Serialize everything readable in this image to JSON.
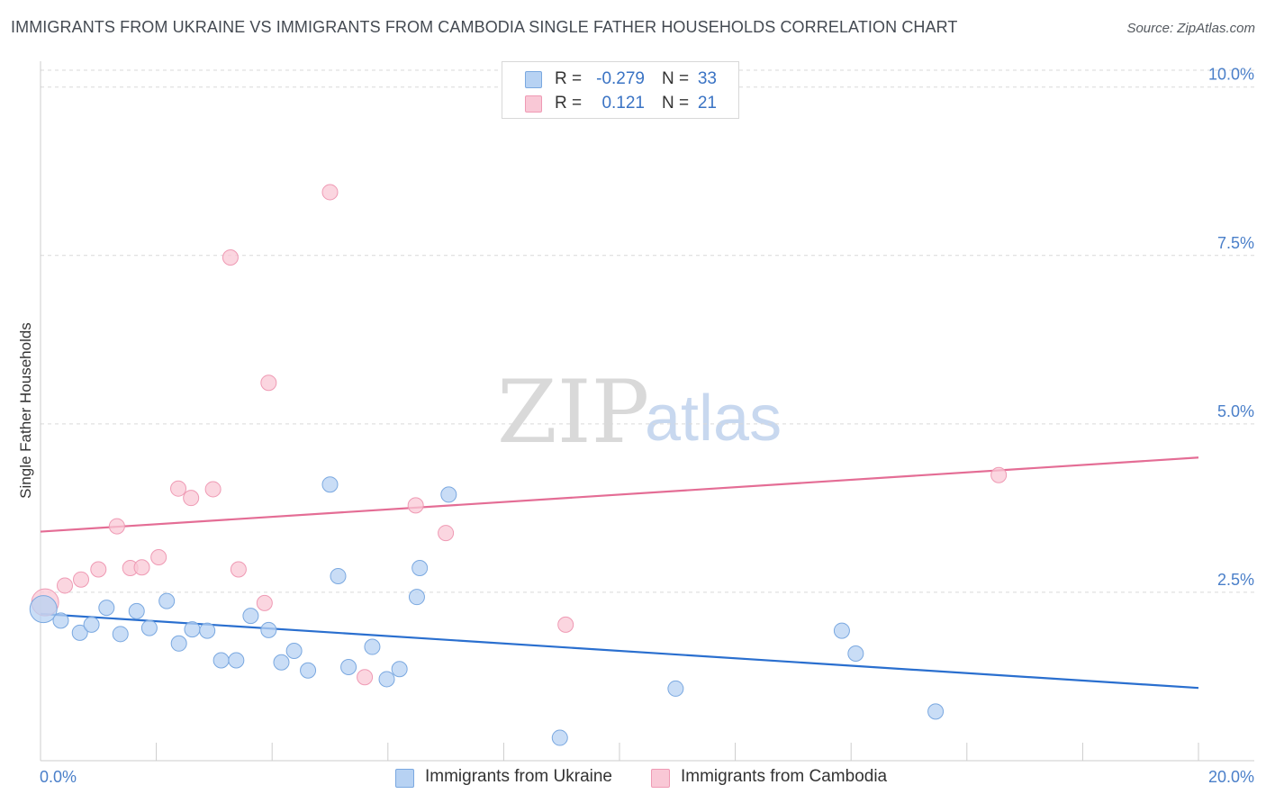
{
  "header": {
    "title": "IMMIGRANTS FROM UKRAINE VS IMMIGRANTS FROM CAMBODIA SINGLE FATHER HOUSEHOLDS CORRELATION CHART",
    "source": "Source: ZipAtlas.com"
  },
  "watermark": {
    "zip": "ZIP",
    "atlas": "atlas"
  },
  "colors": {
    "ukraine_fill": "#b7d2f3",
    "ukraine_stroke": "#7aa8e0",
    "ukraine_line": "#2a6fcf",
    "cambodia_fill": "#f9c8d6",
    "cambodia_stroke": "#ef9ab4",
    "cambodia_line": "#e46d95",
    "grid": "#d9d9d9",
    "axis_text": "#4a7fc9"
  },
  "legend": {
    "rows": [
      {
        "r_label": "R =",
        "r_value": "-0.279",
        "n_label": "N =",
        "n_value": "33"
      },
      {
        "r_label": "R =",
        "r_value": "0.121",
        "n_label": "N =",
        "n_value": "21"
      }
    ]
  },
  "bottom_legend": {
    "ukraine": "Immigrants from Ukraine",
    "cambodia": "Immigrants from Cambodia"
  },
  "chart_data": {
    "type": "scatter",
    "title": "IMMIGRANTS FROM UKRAINE VS IMMIGRANTS FROM CAMBODIA SINGLE FATHER HOUSEHOLDS CORRELATION CHART",
    "xlabel": "",
    "ylabel": "Single Father Households",
    "xlim": [
      0,
      20
    ],
    "ylim": [
      0,
      10.25
    ],
    "x_tick_labels": [
      "0.0%",
      "20.0%"
    ],
    "y_ticks": [
      {
        "value": 2.5,
        "label": "2.5%"
      },
      {
        "value": 5.0,
        "label": "5.0%"
      },
      {
        "value": 7.5,
        "label": "7.5%"
      },
      {
        "value": 10.0,
        "label": "10.0%"
      }
    ],
    "grid": true,
    "series": [
      {
        "name": "Immigrants from Ukraine",
        "r": -0.279,
        "n": 33,
        "trend": {
          "x": [
            0,
            20
          ],
          "y": [
            2.18,
            1.08
          ]
        },
        "points": [
          {
            "x": 0.05,
            "y": 2.25,
            "large": true
          },
          {
            "x": 0.35,
            "y": 2.08
          },
          {
            "x": 0.68,
            "y": 1.9
          },
          {
            "x": 0.88,
            "y": 2.02
          },
          {
            "x": 1.14,
            "y": 2.27
          },
          {
            "x": 1.38,
            "y": 1.88
          },
          {
            "x": 1.66,
            "y": 2.22
          },
          {
            "x": 1.88,
            "y": 1.97
          },
          {
            "x": 2.18,
            "y": 2.37
          },
          {
            "x": 2.39,
            "y": 1.74
          },
          {
            "x": 2.62,
            "y": 1.95
          },
          {
            "x": 2.88,
            "y": 1.93
          },
          {
            "x": 3.12,
            "y": 1.49
          },
          {
            "x": 3.38,
            "y": 1.49
          },
          {
            "x": 3.63,
            "y": 2.15
          },
          {
            "x": 3.94,
            "y": 1.94
          },
          {
            "x": 4.16,
            "y": 1.46
          },
          {
            "x": 4.38,
            "y": 1.63
          },
          {
            "x": 4.62,
            "y": 1.34
          },
          {
            "x": 5.0,
            "y": 4.1
          },
          {
            "x": 5.14,
            "y": 2.74
          },
          {
            "x": 5.32,
            "y": 1.39
          },
          {
            "x": 5.73,
            "y": 1.69
          },
          {
            "x": 5.98,
            "y": 1.21
          },
          {
            "x": 6.2,
            "y": 1.36
          },
          {
            "x": 6.5,
            "y": 2.43
          },
          {
            "x": 6.55,
            "y": 2.86
          },
          {
            "x": 7.05,
            "y": 3.95
          },
          {
            "x": 8.97,
            "y": 0.34
          },
          {
            "x": 10.97,
            "y": 1.07
          },
          {
            "x": 13.84,
            "y": 1.93
          },
          {
            "x": 14.08,
            "y": 1.59
          },
          {
            "x": 15.46,
            "y": 0.73
          }
        ]
      },
      {
        "name": "Immigrants from Cambodia",
        "r": 0.121,
        "n": 21,
        "trend": {
          "x": [
            0,
            20
          ],
          "y": [
            3.4,
            4.5
          ]
        },
        "points": [
          {
            "x": 0.08,
            "y": 2.35,
            "large": true
          },
          {
            "x": 0.42,
            "y": 2.6
          },
          {
            "x": 0.7,
            "y": 2.69
          },
          {
            "x": 1.0,
            "y": 2.84
          },
          {
            "x": 1.32,
            "y": 3.48
          },
          {
            "x": 1.55,
            "y": 2.86
          },
          {
            "x": 1.75,
            "y": 2.87
          },
          {
            "x": 2.04,
            "y": 3.02
          },
          {
            "x": 2.38,
            "y": 4.04
          },
          {
            "x": 2.6,
            "y": 3.9
          },
          {
            "x": 2.98,
            "y": 4.03
          },
          {
            "x": 3.28,
            "y": 7.47
          },
          {
            "x": 3.42,
            "y": 2.84
          },
          {
            "x": 3.87,
            "y": 2.34
          },
          {
            "x": 3.94,
            "y": 5.61
          },
          {
            "x": 5.0,
            "y": 8.44
          },
          {
            "x": 5.6,
            "y": 1.24
          },
          {
            "x": 6.48,
            "y": 3.79
          },
          {
            "x": 7.0,
            "y": 3.38
          },
          {
            "x": 9.07,
            "y": 2.02
          },
          {
            "x": 16.55,
            "y": 4.24
          }
        ]
      }
    ]
  }
}
